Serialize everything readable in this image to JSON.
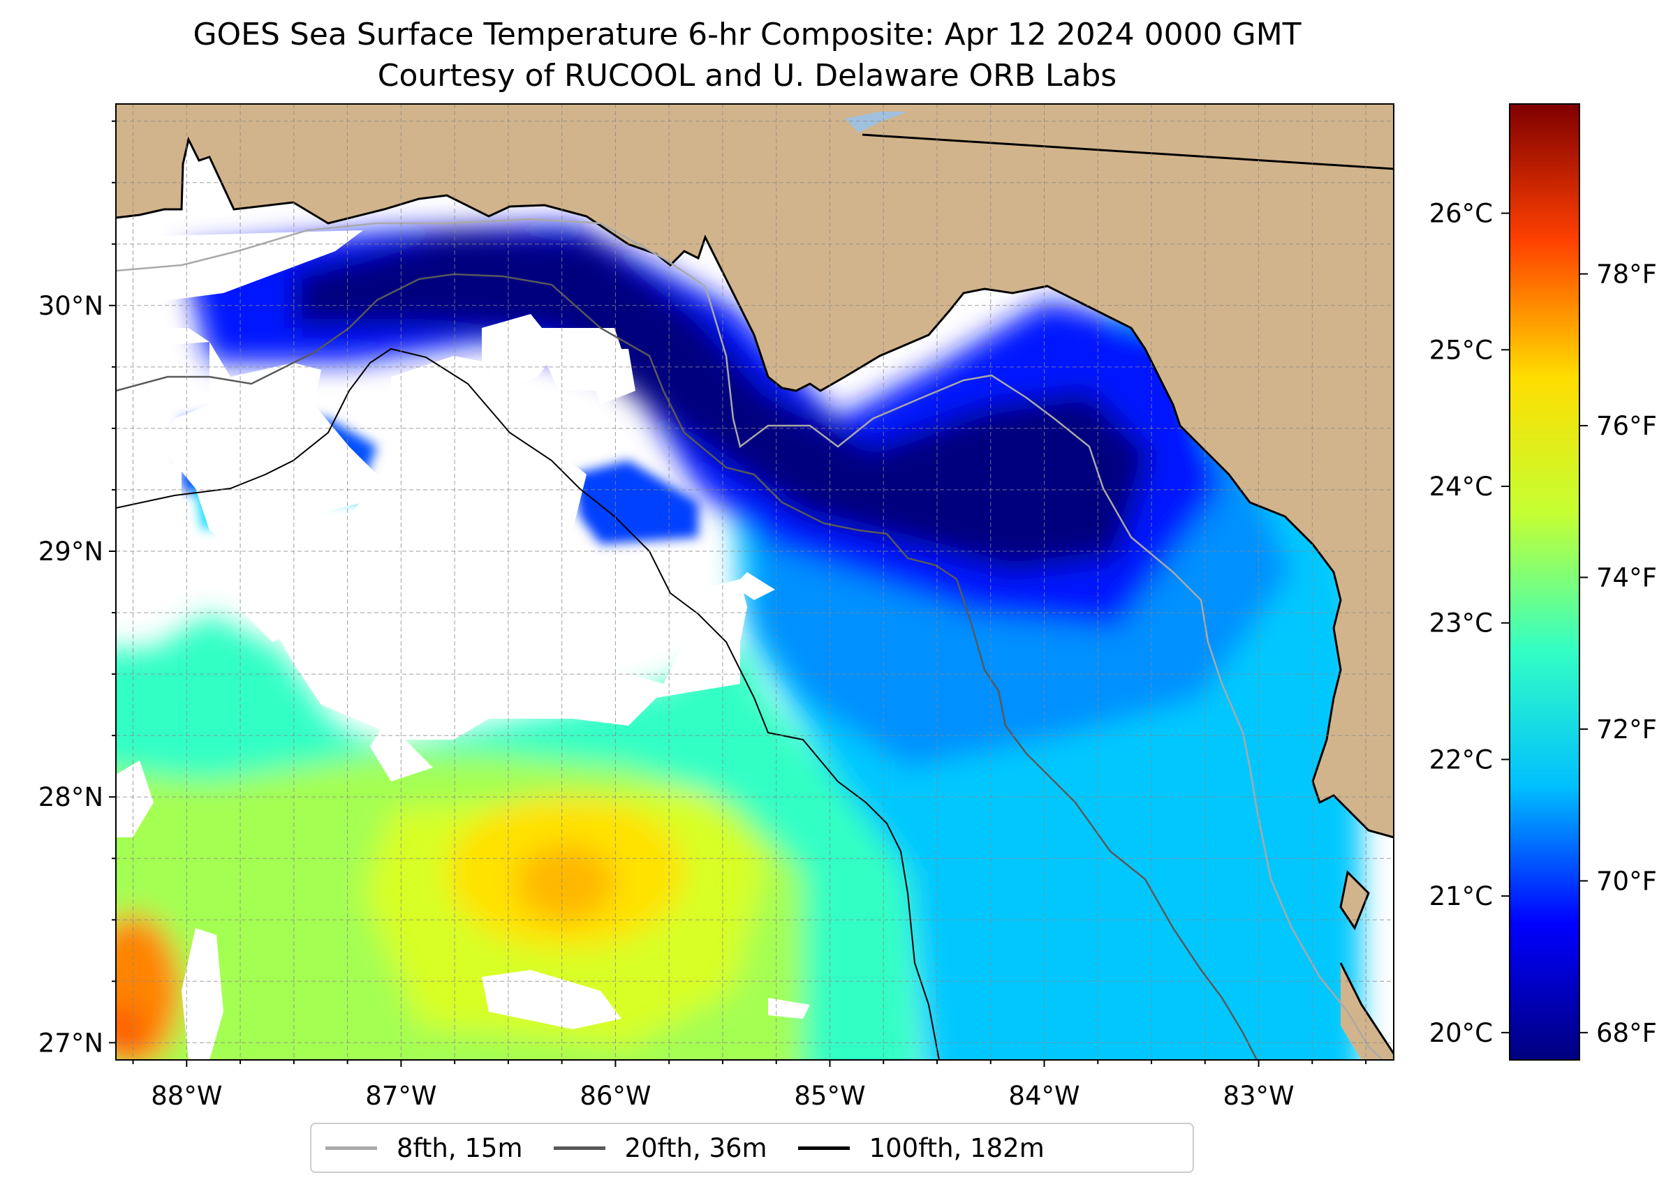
{
  "title": "GOES Sea Surface Temperature 6-hr Composite: Apr 12 2024 0000 GMT",
  "subtitle": "Courtesy of RUCOOL and U. Delaware ORB Labs",
  "map": {
    "extent": {
      "lon_min": -88.33,
      "lon_max": -82.37,
      "lat_min": 26.93,
      "lat_max": 30.82
    },
    "lon_ticks": [
      -88,
      -87,
      -86,
      -85,
      -84,
      -83
    ],
    "lon_labels": [
      "88°W",
      "87°W",
      "86°W",
      "85°W",
      "84°W",
      "83°W"
    ],
    "lat_ticks": [
      27,
      28,
      29,
      30
    ],
    "lat_labels": [
      "27°N",
      "28°N",
      "29°N",
      "30°N"
    ],
    "grid": "dashed, 0.25° spacing",
    "land_color": "#d2b48c",
    "water_no_data_color": "#ffffff"
  },
  "colorbar": {
    "celsius_range": [
      19.8,
      26.8
    ],
    "celsius_ticks": [
      20,
      21,
      22,
      23,
      24,
      25,
      26
    ],
    "celsius_labels": [
      "20°C",
      "21°C",
      "22°C",
      "23°C",
      "24°C",
      "25°C",
      "26°C"
    ],
    "fahrenheit_ticks": [
      68,
      70,
      72,
      74,
      76,
      78
    ],
    "fahrenheit_labels": [
      "68°F",
      "70°F",
      "72°F",
      "74°F",
      "76°F",
      "78°F"
    ],
    "colormap": "jet",
    "colors": [
      "#00007f",
      "#0000ff",
      "#00bfff",
      "#33ffc4",
      "#c4ff33",
      "#ffdd00",
      "#ff4000",
      "#7f0000"
    ]
  },
  "legend": {
    "entries": [
      {
        "label": "8fth, 15m",
        "color": "#a9a9a9"
      },
      {
        "label": "20fth, 36m",
        "color": "#595959"
      },
      {
        "label": "100fth, 182m",
        "color": "#000000"
      }
    ]
  }
}
